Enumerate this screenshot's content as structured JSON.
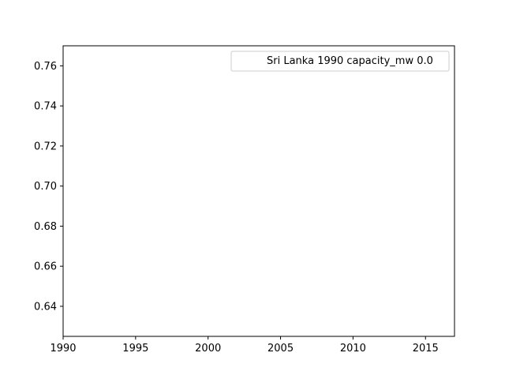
{
  "chart_data": {
    "type": "line",
    "title": "",
    "xlabel": "",
    "ylabel": "",
    "xlim": [
      1990,
      2017
    ],
    "ylim": [
      0.625,
      0.77
    ],
    "x_ticks": [
      1990,
      1995,
      2000,
      2005,
      2010,
      2015
    ],
    "x_tick_labels": [
      "1990",
      "1995",
      "2000",
      "2005",
      "2010",
      "2015"
    ],
    "y_ticks": [
      0.64,
      0.66,
      0.68,
      0.7,
      0.72,
      0.74,
      0.76
    ],
    "y_tick_labels": [
      "0.64",
      "0.66",
      "0.68",
      "0.70",
      "0.72",
      "0.74",
      "0.76"
    ],
    "grid": false,
    "legend_placement": "top-right",
    "series": [
      {
        "name": "Sri Lanka 1990 capacity_mw 0.0",
        "x": [],
        "y": [],
        "color": "#ffffff"
      }
    ]
  }
}
